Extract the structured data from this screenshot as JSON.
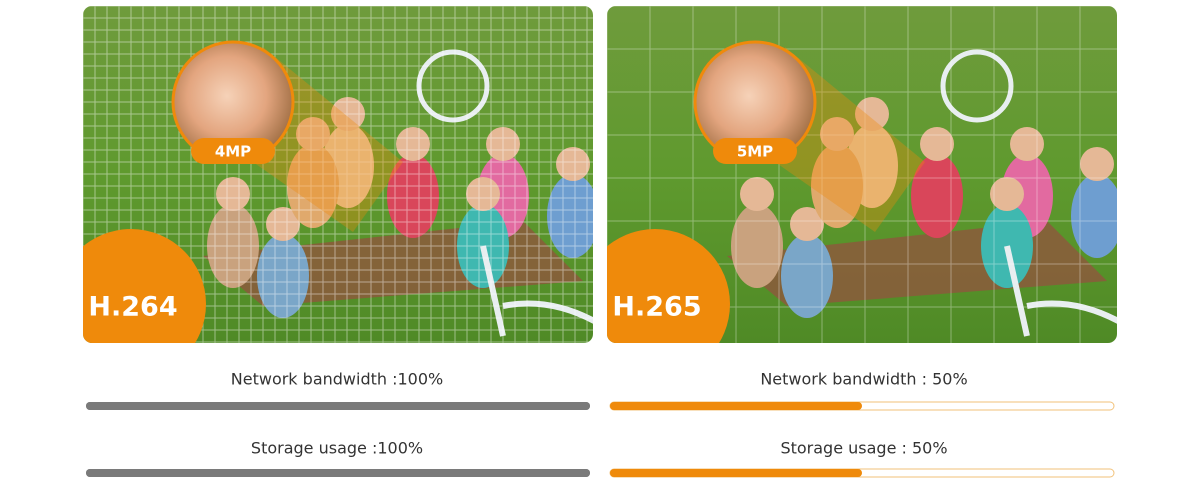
{
  "panels": [
    {
      "resolution": "4MP",
      "codec": "H.264",
      "metrics": [
        {
          "label": "Network bandwidth :100%",
          "value": 100
        },
        {
          "label": "Storage usage :100%",
          "value": 100
        }
      ]
    },
    {
      "resolution": "5MP",
      "codec": "H.265",
      "metrics": [
        {
          "label": "Network bandwidth : 50%",
          "value": 50
        },
        {
          "label": "Storage usage : 50%",
          "value": 50
        }
      ]
    }
  ]
}
